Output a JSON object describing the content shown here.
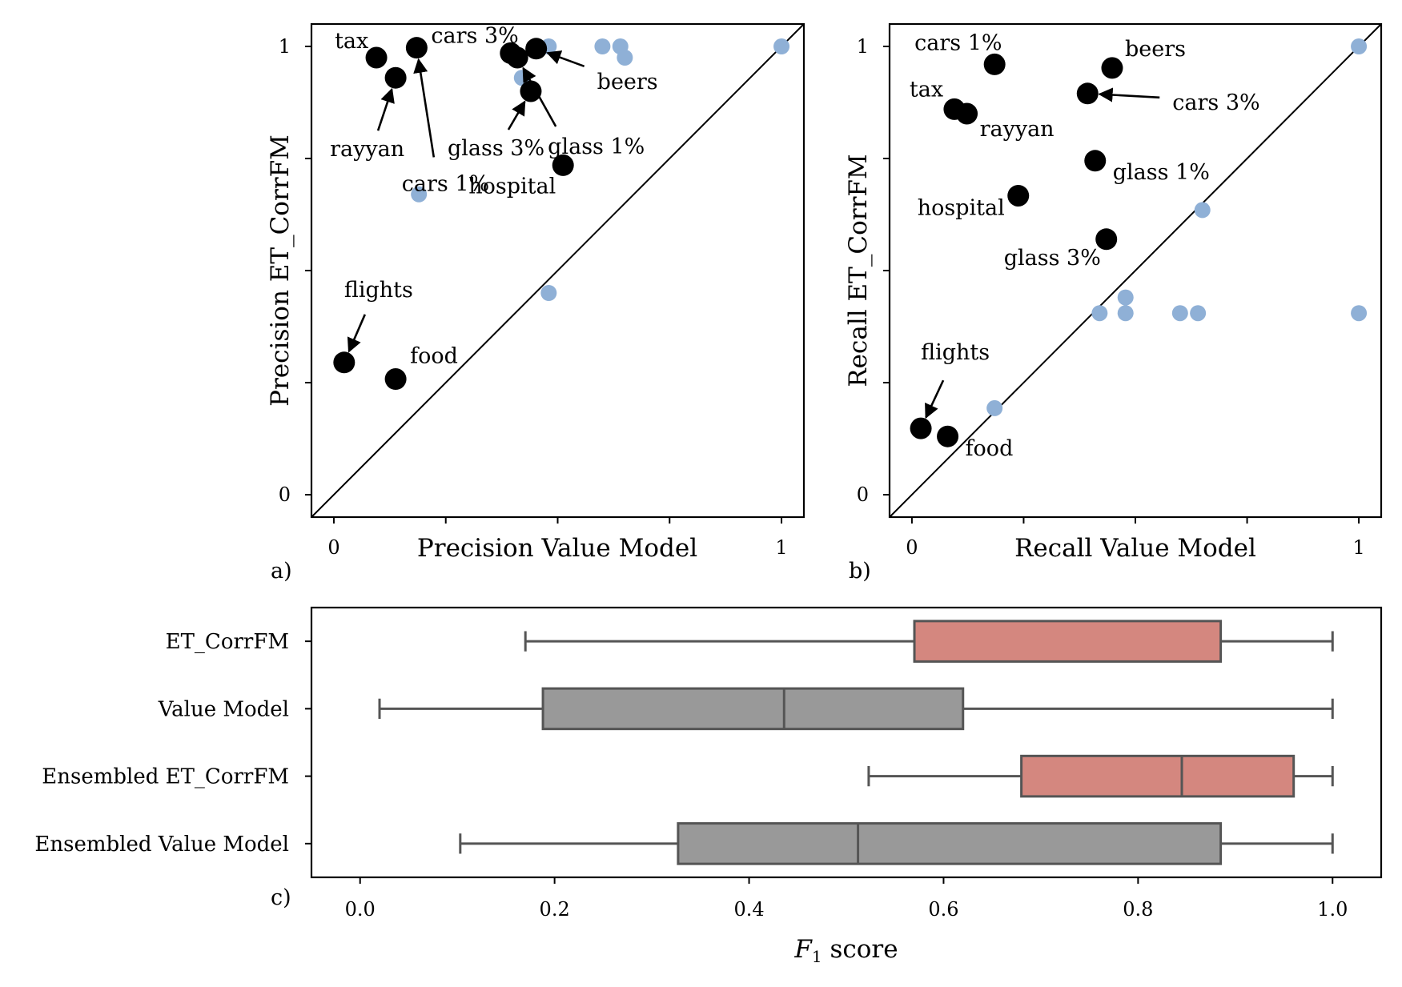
{
  "chart_data": [
    {
      "panel": "a)",
      "type": "scatter",
      "xlabel": "Precision Value Model",
      "ylabel": "Precision ET_CorrFM",
      "xlim": [
        -0.05,
        1.05
      ],
      "ylim": [
        -0.05,
        1.05
      ],
      "xticks": [
        0,
        0.25,
        0.5,
        0.75,
        1
      ],
      "xtick_labels": [
        "0",
        "",
        "",
        "",
        "1"
      ],
      "yticks": [
        0,
        0.25,
        0.5,
        0.75,
        1
      ],
      "ytick_labels": [
        "0",
        "",
        "",
        "",
        "1"
      ],
      "diagonal": true,
      "colors": {
        "highlight": "#000000",
        "other": "#8fb0d6"
      },
      "highlight": [
        {
          "name": "tax",
          "x": 0.095,
          "y": 0.975
        },
        {
          "name": "cars 3%",
          "x": 0.185,
          "y": 0.997
        },
        {
          "name": "rayyan",
          "x": 0.138,
          "y": 0.93
        },
        {
          "name": "cars 1%",
          "x": 0.395,
          "y": 0.985
        },
        {
          "name": "beers",
          "x": 0.452,
          "y": 0.995
        },
        {
          "name": "glass 1%",
          "x": 0.41,
          "y": 0.975
        },
        {
          "name": "glass 3%",
          "x": 0.44,
          "y": 0.9
        },
        {
          "name": "hospital",
          "x": 0.512,
          "y": 0.735
        },
        {
          "name": "flights",
          "x": 0.023,
          "y": 0.295
        },
        {
          "name": "food",
          "x": 0.138,
          "y": 0.258
        }
      ],
      "other": [
        {
          "x": 0.19,
          "y": 0.67
        },
        {
          "x": 0.42,
          "y": 0.93
        },
        {
          "x": 0.48,
          "y": 1.0
        },
        {
          "x": 0.6,
          "y": 1.0
        },
        {
          "x": 0.64,
          "y": 1.0
        },
        {
          "x": 0.65,
          "y": 0.975
        },
        {
          "x": 1.0,
          "y": 1.0
        },
        {
          "x": 0.48,
          "y": 0.45
        }
      ]
    },
    {
      "panel": "b)",
      "type": "scatter",
      "xlabel": "Recall Value Model",
      "ylabel": "Recall ET_CorrFM",
      "xlim": [
        -0.05,
        1.05
      ],
      "ylim": [
        -0.05,
        1.05
      ],
      "xticks": [
        0,
        0.25,
        0.5,
        0.75,
        1
      ],
      "xtick_labels": [
        "0",
        "",
        "",
        "",
        "1"
      ],
      "yticks": [
        0,
        0.25,
        0.5,
        0.75,
        1
      ],
      "ytick_labels": [
        "0",
        "",
        "",
        "",
        "1"
      ],
      "diagonal": true,
      "colors": {
        "highlight": "#000000",
        "other": "#8fb0d6"
      },
      "highlight": [
        {
          "name": "cars 1%",
          "x": 0.185,
          "y": 0.96
        },
        {
          "name": "beers",
          "x": 0.448,
          "y": 0.952
        },
        {
          "name": "cars 3%",
          "x": 0.393,
          "y": 0.895
        },
        {
          "name": "tax",
          "x": 0.095,
          "y": 0.86
        },
        {
          "name": "rayyan",
          "x": 0.123,
          "y": 0.85
        },
        {
          "name": "glass 1%",
          "x": 0.41,
          "y": 0.745
        },
        {
          "name": "hospital",
          "x": 0.238,
          "y": 0.667
        },
        {
          "name": "glass 3%",
          "x": 0.435,
          "y": 0.57
        },
        {
          "name": "flights",
          "x": 0.02,
          "y": 0.148
        },
        {
          "name": "food",
          "x": 0.08,
          "y": 0.13
        }
      ],
      "other": [
        {
          "x": 0.185,
          "y": 0.193
        },
        {
          "x": 0.42,
          "y": 0.405
        },
        {
          "x": 0.478,
          "y": 0.405
        },
        {
          "x": 0.478,
          "y": 0.44
        },
        {
          "x": 0.6,
          "y": 0.405
        },
        {
          "x": 0.64,
          "y": 0.405
        },
        {
          "x": 0.65,
          "y": 0.635
        },
        {
          "x": 1.0,
          "y": 1.0
        },
        {
          "x": 1.0,
          "y": 0.405
        }
      ]
    },
    {
      "panel": "c)",
      "type": "box",
      "xlabel": "F1 score",
      "xlabel_main": "F",
      "xlabel_sub": "1",
      "xlabel_rest": " score",
      "xlim": [
        -0.05,
        1.05
      ],
      "xticks": [
        0.0,
        0.2,
        0.4,
        0.6,
        0.8,
        1.0
      ],
      "xtick_labels": [
        "0.0",
        "0.2",
        "0.4",
        "0.6",
        "0.8",
        "1.0"
      ],
      "categories": [
        "ET_CorrFM",
        "Value Model",
        "Ensembled ET_CorrFM",
        "Ensembled Value Model"
      ],
      "boxes": [
        {
          "name": "ET_CorrFM",
          "whislo": 0.17,
          "q1": 0.57,
          "med": 0.57,
          "q3": 0.885,
          "whishi": 1.0,
          "color": "#d4877f"
        },
        {
          "name": "Value Model",
          "whislo": 0.02,
          "q1": 0.188,
          "med": 0.436,
          "q3": 0.62,
          "whishi": 1.0,
          "color": "#999999"
        },
        {
          "name": "Ensembled ET_CorrFM",
          "whislo": 0.523,
          "q1": 0.68,
          "med": 0.845,
          "q3": 0.96,
          "whishi": 1.0,
          "color": "#d4877f"
        },
        {
          "name": "Ensembled Value Model",
          "whislo": 0.103,
          "q1": 0.327,
          "med": 0.512,
          "q3": 0.885,
          "whishi": 1.0,
          "color": "#999999"
        }
      ]
    }
  ]
}
